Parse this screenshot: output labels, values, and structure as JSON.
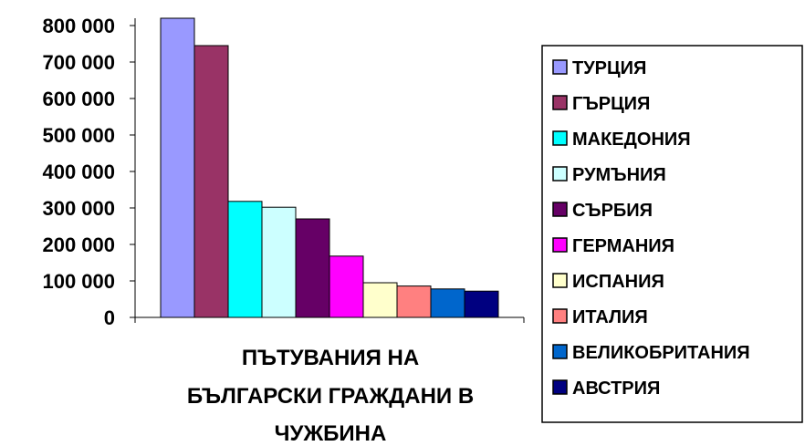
{
  "chart_data": {
    "type": "bar",
    "title_lines": [
      "ПЪТУВАНИЯ НА",
      "БЪЛГАРСКИ ГРАЖДАНИ В",
      "ЧУЖБИНА"
    ],
    "xlabel": "",
    "ylabel": "",
    "ylim": [
      0,
      800000
    ],
    "y_ticks": [
      {
        "value": 0,
        "label": "0"
      },
      {
        "value": 100000,
        "label": "100 000"
      },
      {
        "value": 200000,
        "label": "200 000"
      },
      {
        "value": 300000,
        "label": "300 000"
      },
      {
        "value": 400000,
        "label": "400 000"
      },
      {
        "value": 500000,
        "label": "500 000"
      },
      {
        "value": 600000,
        "label": "600 000"
      },
      {
        "value": 700000,
        "label": "700 000"
      },
      {
        "value": 800000,
        "label": "800 000"
      }
    ],
    "grid": false,
    "legend_position": "right",
    "series": [
      {
        "name": "ТУРЦИЯ",
        "value": 850000,
        "color": "#9999FF"
      },
      {
        "name": "ГЪРЦИЯ",
        "value": 745000,
        "color": "#993366"
      },
      {
        "name": "МАКЕДОНИЯ",
        "value": 318000,
        "color": "#00FFFF"
      },
      {
        "name": "РУМЪНИЯ",
        "value": 302000,
        "color": "#CCFFFF"
      },
      {
        "name": "СЪРБИЯ",
        "value": 270000,
        "color": "#660066"
      },
      {
        "name": "ГЕРМАНИЯ",
        "value": 168000,
        "color": "#FF00FF"
      },
      {
        "name": "ИСПАНИЯ",
        "value": 95000,
        "color": "#FFFFCC"
      },
      {
        "name": "ИТАЛИЯ",
        "value": 86000,
        "color": "#FF8080"
      },
      {
        "name": "ВЕЛИКОБРИТАНИЯ",
        "value": 78000,
        "color": "#0066CC"
      },
      {
        "name": "АВСТРИЯ",
        "value": 72000,
        "color": "#000080"
      }
    ]
  }
}
